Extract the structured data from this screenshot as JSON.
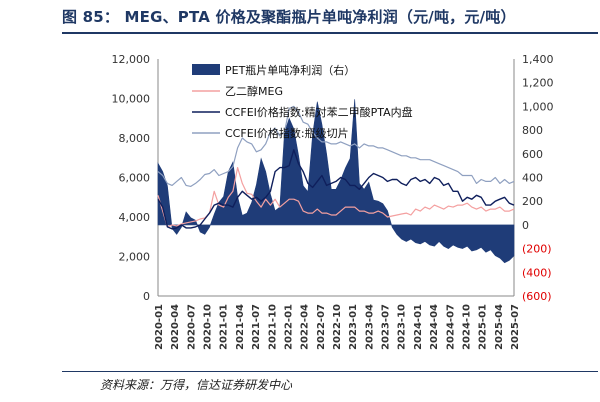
{
  "title": "图 85： MEG、PTA 价格及聚酯瓶片单吨净利润（元/吨，元/吨）",
  "source": "资料来源：万得，信达证券研发中心",
  "chart_data": {
    "type": "line",
    "left_axis": {
      "range": [
        0,
        12000
      ],
      "ticks": [
        "0",
        "2,000",
        "4,000",
        "6,000",
        "8,000",
        "10,000",
        "12,000"
      ]
    },
    "right_axis": {
      "range": [
        -600,
        1400
      ],
      "ticks": [
        "(600)",
        "(400)",
        "(200)",
        "0",
        "200",
        "400",
        "600",
        "800",
        "1,000",
        "1,200",
        "1,400"
      ],
      "negative_color": "#e00000"
    },
    "x_ticks": [
      "2020-01",
      "2020-04",
      "2020-07",
      "2020-10",
      "2021-01",
      "2021-04",
      "2021-07",
      "2021-10",
      "2022-01",
      "2022-04",
      "2022-07",
      "2022-10",
      "2023-01",
      "2023-04",
      "2023-07",
      "2023-10",
      "2024-01",
      "2024-04",
      "2024-07",
      "2024-10",
      "2025-01",
      "2025-04",
      "2025-07"
    ],
    "legend_position": "top-center",
    "series": [
      {
        "name": "PET瓶片单吨净利润（右）",
        "kind": "area",
        "axis": "right",
        "color": "#1f3c78",
        "values": [
          520,
          450,
          330,
          -30,
          -80,
          -20,
          110,
          60,
          40,
          -60,
          -80,
          -20,
          90,
          190,
          240,
          450,
          530,
          240,
          80,
          100,
          190,
          340,
          560,
          450,
          260,
          120,
          150,
          780,
          900,
          810,
          590,
          330,
          280,
          760,
          1040,
          850,
          600,
          300,
          300,
          380,
          480,
          560,
          1060,
          350,
          300,
          360,
          210,
          200,
          180,
          120,
          -20,
          -80,
          -120,
          -140,
          -120,
          -150,
          -160,
          -140,
          -170,
          -180,
          -140,
          -180,
          -200,
          -170,
          -190,
          -200,
          -180,
          -220,
          -210,
          -190,
          -230,
          -210,
          -260,
          -280,
          -320,
          -300,
          -260
        ]
      },
      {
        "name": "乙二醇MEG",
        "kind": "line",
        "axis": "left",
        "color": "#f4a0a0",
        "values": [
          5100,
          4300,
          3500,
          3600,
          3550,
          3650,
          3700,
          3750,
          3800,
          3900,
          3950,
          4200,
          5300,
          4600,
          4500,
          5000,
          5300,
          6500,
          5700,
          5200,
          5150,
          4800,
          4500,
          4900,
          4600,
          4900,
          4500,
          4700,
          4900,
          4900,
          4800,
          4300,
          4200,
          4200,
          4400,
          4200,
          4200,
          4100,
          4100,
          4300,
          4500,
          4500,
          4500,
          4300,
          4300,
          4200,
          4200,
          4300,
          4200,
          4000,
          4050,
          4100,
          4150,
          4200,
          4100,
          4400,
          4300,
          4500,
          4400,
          4600,
          4500,
          4400,
          4550,
          4500,
          4600,
          4600,
          4700,
          4500,
          4400,
          4500,
          4300,
          4400,
          4400,
          4500,
          4300,
          4300,
          4400
        ]
      },
      {
        "name": "CCFEI价格指数:精对苯二甲酸PTA内盘",
        "kind": "line",
        "axis": "left",
        "color": "#0f1f5c",
        "values": [
          4900,
          4500,
          3500,
          3400,
          3450,
          3600,
          3450,
          3450,
          3500,
          3600,
          3900,
          4200,
          4600,
          4700,
          4600,
          4600,
          4500,
          5000,
          5300,
          5100,
          4900,
          5000,
          4800,
          5000,
          5300,
          6300,
          6500,
          6500,
          6600,
          7400,
          6700,
          6300,
          5700,
          5500,
          5800,
          6100,
          5600,
          5700,
          5800,
          6000,
          5900,
          5600,
          5600,
          5400,
          5700,
          6000,
          6200,
          6100,
          6000,
          5800,
          5900,
          5900,
          5700,
          5600,
          5900,
          6000,
          5800,
          5900,
          5700,
          6000,
          5900,
          5600,
          5700,
          5300,
          5300,
          4800,
          5000,
          4900,
          5100,
          5000,
          4600,
          4600,
          4800,
          4900,
          5000,
          4700,
          4600
        ]
      },
      {
        "name": "CCFEI价格指数:瓶级切片",
        "kind": "line",
        "axis": "left",
        "color": "#8fa0c0",
        "values": [
          6300,
          6100,
          5700,
          5600,
          5800,
          6000,
          5600,
          5550,
          5700,
          5900,
          6150,
          6200,
          6400,
          6100,
          6200,
          6300,
          6550,
          7500,
          8000,
          7800,
          7700,
          7300,
          7400,
          7700,
          8300,
          8500,
          8100,
          8300,
          9500,
          9600,
          9300,
          8800,
          8700,
          8300,
          8000,
          7800,
          7800,
          7700,
          7700,
          7800,
          7700,
          7600,
          7700,
          7500,
          7700,
          7600,
          7600,
          7500,
          7500,
          7400,
          7300,
          7200,
          7100,
          7100,
          7000,
          7000,
          6900,
          6900,
          6900,
          6800,
          6700,
          6600,
          6500,
          6400,
          6300,
          6100,
          6100,
          6100,
          5700,
          5900,
          5800,
          5800,
          6000,
          5700,
          5900,
          5700,
          5800
        ]
      }
    ]
  }
}
